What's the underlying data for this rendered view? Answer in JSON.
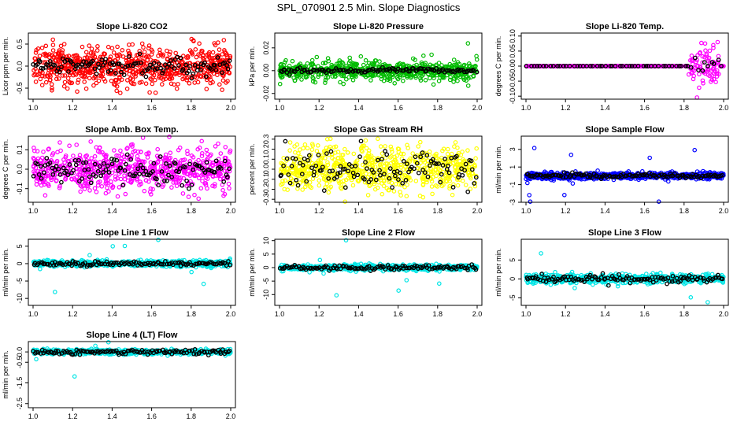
{
  "figure_title": "SPL_070901  2.5 Min. Slope Diagnostics",
  "chart_data": [
    {
      "type": "scatter",
      "title": "Slope Li-820 CO2",
      "ylabel": "Licor ppm per min.",
      "xlim": [
        1.0,
        2.0
      ],
      "ylim": [
        -0.75,
        0.75
      ],
      "xticks": [
        "1.0",
        "1.2",
        "1.4",
        "1.6",
        "1.8",
        "2.0"
      ],
      "yticks": [
        "-0.5",
        "0.0",
        "0.5"
      ],
      "color": "#ff0000",
      "x_range": [
        1.0,
        2.0
      ],
      "noise_sd": 0.22,
      "black_sd": 0.1,
      "n_points": 700,
      "n_black": 120
    },
    {
      "type": "scatter",
      "title": "Slope Li-820 Pressure",
      "ylabel": "kPa per min.",
      "xlim": [
        1.0,
        2.0
      ],
      "ylim": [
        -0.025,
        0.033
      ],
      "xticks": [
        "1.0",
        "1.2",
        "1.4",
        "1.6",
        "1.8",
        "2.0"
      ],
      "yticks": [
        "-0.02",
        "0.00",
        "0.02"
      ],
      "color": "#00bb00",
      "x_range": [
        1.0,
        2.0
      ],
      "noise_sd": 0.004,
      "black_sd": 0.001,
      "n_points": 650,
      "n_black": 120
    },
    {
      "type": "scatter",
      "title": "Slope Li-820 Temp.",
      "ylabel": "degrees C per min.",
      "xlim": [
        1.0,
        2.0
      ],
      "ylim": [
        -0.11,
        0.11
      ],
      "xticks": [
        "1.0",
        "1.2",
        "1.4",
        "1.6",
        "1.8",
        "2.0"
      ],
      "yticks": [
        "-0.10",
        "-0.05",
        "0.00",
        "0.05",
        "0.10"
      ],
      "color": "#ff00ff",
      "x_range": [
        1.0,
        2.0
      ],
      "noise_sd": 0.0,
      "burst": [
        1.82,
        1.98,
        0.03
      ],
      "black_sd": 0.0,
      "n_points": 500,
      "n_black": 60
    },
    {
      "type": "scatter",
      "title": "Slope Amb. Box Temp.",
      "ylabel": "degrees C per min.",
      "xlim": [
        1.0,
        2.0
      ],
      "ylim": [
        -0.17,
        0.17
      ],
      "xticks": [
        "1.0",
        "1.2",
        "1.4",
        "1.6",
        "1.8",
        "2.0"
      ],
      "yticks": [
        "-0.1",
        "0.0",
        "0.1"
      ],
      "color": "#ff00ff",
      "x_range": [
        1.0,
        2.0
      ],
      "noise_sd": 0.055,
      "black_sd": 0.04,
      "n_points": 700,
      "n_black": 120
    },
    {
      "type": "scatter",
      "title": "Slope Gas Stream RH",
      "ylabel": "percent per min.",
      "xlim": [
        1.0,
        2.0
      ],
      "ylim": [
        -0.33,
        0.33
      ],
      "xticks": [
        "1.0",
        "1.2",
        "1.4",
        "1.6",
        "1.8",
        "2.0"
      ],
      "yticks": [
        "-0.3",
        "-0.2",
        "-0.1",
        "0.0",
        "0.1",
        "0.2",
        "0.3"
      ],
      "color": "#ffff00",
      "x_range": [
        1.0,
        2.0
      ],
      "noise_sd": 0.11,
      "black_sd": 0.09,
      "n_points": 700,
      "n_black": 120
    },
    {
      "type": "scatter",
      "title": "Slope Sample Flow",
      "ylabel": "ml/min per min.",
      "xlim": [
        1.0,
        2.0
      ],
      "ylim": [
        -3.0,
        4.5
      ],
      "xticks": [
        "1.0",
        "1.2",
        "1.4",
        "1.6",
        "1.8",
        "2.0"
      ],
      "yticks": [
        "-3",
        "-1",
        "1",
        "3"
      ],
      "color": "#0000ff",
      "x_range": [
        1.0,
        2.0
      ],
      "noise_sd": 0.18,
      "black_sd": 0.15,
      "n_points": 700,
      "n_black": 120
    },
    {
      "type": "scatter",
      "title": "Slope Line 1 Flow",
      "ylabel": "ml/min per min.",
      "xlim": [
        1.0,
        2.0
      ],
      "ylim": [
        -12,
        7
      ],
      "xticks": [
        "1.0",
        "1.2",
        "1.4",
        "1.6",
        "1.8",
        "2.0"
      ],
      "yticks": [
        "-10",
        "-5",
        "0",
        "5"
      ],
      "color": "#00e5e5",
      "x_range": [
        1.0,
        2.0
      ],
      "noise_sd": 0.45,
      "black_sd": 0.3,
      "n_points": 600,
      "n_black": 120
    },
    {
      "type": "scatter",
      "title": "Slope Line 2 Flow",
      "ylabel": "ml/min per min.",
      "xlim": [
        1.0,
        2.0
      ],
      "ylim": [
        -14,
        10.5
      ],
      "xticks": [
        "1.0",
        "1.2",
        "1.4",
        "1.6",
        "1.8",
        "2.0"
      ],
      "yticks": [
        "-10",
        "-5",
        "0",
        "5",
        "10"
      ],
      "color": "#00e5e5",
      "x_range": [
        1.0,
        2.0
      ],
      "noise_sd": 0.55,
      "black_sd": 0.5,
      "n_points": 600,
      "n_black": 120
    },
    {
      "type": "scatter",
      "title": "Slope Line 3 Flow",
      "ylabel": "ml/min per min.",
      "xlim": [
        1.0,
        2.0
      ],
      "ylim": [
        -7,
        10.5
      ],
      "xticks": [
        "1.0",
        "1.2",
        "1.4",
        "1.6",
        "1.8",
        "2.0"
      ],
      "yticks": [
        "-5",
        "0",
        "5"
      ],
      "color": "#00e5e5",
      "x_range": [
        1.0,
        2.0
      ],
      "noise_sd": 0.6,
      "black_sd": 0.5,
      "n_points": 600,
      "n_black": 120
    },
    {
      "type": "scatter",
      "title": "Slope Line 4 (LT) Flow",
      "ylabel": "ml/min per min.",
      "xlim": [
        1.0,
        2.0
      ],
      "ylim": [
        -2.7,
        0.5
      ],
      "xticks": [
        "1.0",
        "1.2",
        "1.4",
        "1.6",
        "1.8",
        "2.0"
      ],
      "yticks": [
        "-2.5",
        "-1.5",
        "-0.5",
        "0.0"
      ],
      "color": "#00e5e5",
      "x_range": [
        1.0,
        2.0
      ],
      "noise_sd": 0.06,
      "black_sd": 0.06,
      "n_points": 600,
      "n_black": 120
    }
  ]
}
